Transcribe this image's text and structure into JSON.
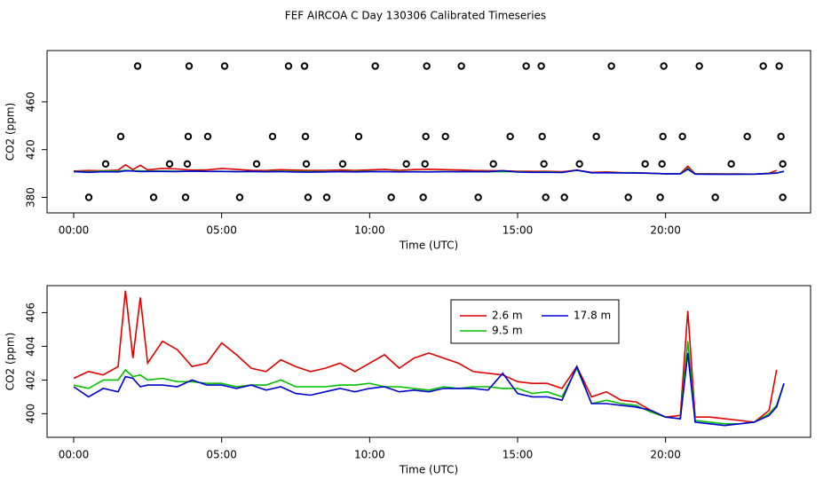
{
  "title": "FEF AIRCOA C  Day 130306  Calibrated Timeseries",
  "chart_data": [
    {
      "type": "line",
      "xlabel": "Time (UTC)",
      "ylabel": "CO2 (ppm)",
      "xlim": [
        -0.9,
        24.9
      ],
      "ylim": [
        367,
        503
      ],
      "xticks": [
        {
          "value": 0,
          "label": "00:00"
        },
        {
          "value": 5,
          "label": "05:00"
        },
        {
          "value": 10,
          "label": "10:00"
        },
        {
          "value": 15,
          "label": "15:00"
        },
        {
          "value": 20,
          "label": "20:00"
        }
      ],
      "yticks": [
        380,
        420,
        460
      ],
      "x": [
        0,
        0.5,
        1,
        1.5,
        1.75,
        2,
        2.25,
        2.5,
        3,
        3.5,
        4,
        4.5,
        5,
        5.5,
        6,
        6.5,
        7,
        7.5,
        8,
        8.5,
        9,
        9.5,
        10,
        10.5,
        11,
        11.5,
        12,
        12.5,
        13,
        13.5,
        14,
        14.5,
        15,
        15.5,
        16,
        16.5,
        17,
        17.5,
        18,
        18.5,
        19,
        19.5,
        20,
        20.5,
        20.75,
        21,
        21.5,
        22,
        22.5,
        23,
        23.5,
        23.75,
        24
      ],
      "lines": [
        {
          "color": "#e00000",
          "values": [
            402.1,
            402.5,
            402.3,
            402.8,
            407.3,
            403.3,
            406.9,
            403.0,
            404.3,
            403.8,
            402.8,
            403.0,
            404.2,
            403.5,
            402.7,
            402.5,
            403.2,
            402.8,
            402.5,
            402.7,
            403.0,
            402.5,
            403.0,
            403.5,
            402.7,
            403.3,
            403.6,
            403.3,
            403.0,
            402.5,
            402.4,
            402.3,
            401.9,
            401.8,
            401.8,
            401.5,
            402.8,
            401.0,
            401.3,
            400.8,
            400.7,
            400.2,
            399.8,
            399.9,
            406.1,
            399.8,
            399.8,
            399.7,
            399.6,
            399.5,
            400.2,
            402.6,
            null
          ]
        },
        {
          "color": "#00c000",
          "values": [
            401.7,
            401.5,
            402.0,
            402.0,
            402.6,
            402.2,
            402.3,
            402.0,
            402.1,
            401.9,
            401.9,
            401.8,
            401.8,
            401.6,
            401.7,
            401.7,
            402.0,
            401.6,
            401.6,
            401.6,
            401.7,
            401.7,
            401.8,
            401.6,
            401.6,
            401.5,
            401.4,
            401.6,
            401.5,
            401.6,
            401.6,
            401.5,
            401.5,
            401.2,
            401.3,
            401.0,
            402.7,
            400.6,
            400.8,
            400.6,
            400.5,
            400.1,
            399.8,
            399.7,
            404.3,
            399.6,
            399.5,
            399.4,
            399.4,
            399.5,
            400.0,
            400.5,
            401.8
          ]
        },
        {
          "color": "#0000d0",
          "values": [
            401.6,
            401.0,
            401.5,
            401.3,
            402.2,
            402.1,
            401.6,
            401.7,
            401.7,
            401.6,
            402.0,
            401.7,
            401.7,
            401.5,
            401.7,
            401.4,
            401.6,
            401.2,
            401.1,
            401.3,
            401.5,
            401.3,
            401.5,
            401.6,
            401.3,
            401.4,
            401.3,
            401.5,
            401.5,
            401.5,
            401.4,
            402.4,
            401.2,
            401.0,
            401.0,
            400.8,
            402.8,
            400.6,
            400.6,
            400.5,
            400.4,
            400.2,
            399.8,
            399.7,
            403.6,
            399.5,
            399.4,
            399.3,
            399.4,
            399.5,
            399.9,
            400.4,
            401.8
          ]
        }
      ],
      "points": {
        "x": [
          2.16,
          3.9,
          5.1,
          7.26,
          7.8,
          10.19,
          11.93,
          13.1,
          15.29,
          15.8,
          18.17,
          19.94,
          21.14,
          23.3,
          23.84,
          1.59,
          3.87,
          4.53,
          6.72,
          7.83,
          9.63,
          11.9,
          12.56,
          14.75,
          15.83,
          17.66,
          19.91,
          20.57,
          22.76,
          23.9,
          1.08,
          3.24,
          3.84,
          6.18,
          7.86,
          9.09,
          11.24,
          11.87,
          14.18,
          15.89,
          17.09,
          19.31,
          19.88,
          22.22,
          23.96,
          0.51,
          2.7,
          3.78,
          5.61,
          7.92,
          8.55,
          10.73,
          11.81,
          13.67,
          15.95,
          16.58,
          18.74,
          19.82,
          21.68,
          23.96
        ],
        "y": [
          490,
          490,
          490,
          490,
          490,
          490,
          490,
          490,
          490,
          490,
          490,
          490,
          490,
          490,
          490,
          431,
          431,
          431,
          431,
          431,
          431,
          431,
          431,
          431,
          431,
          431,
          431,
          431,
          431,
          431,
          408,
          408,
          408,
          408,
          408,
          408,
          408,
          408,
          408,
          408,
          408,
          408,
          408,
          408,
          408,
          380,
          380,
          380,
          380,
          380,
          380,
          380,
          380,
          380,
          380,
          380,
          380,
          380,
          380,
          380
        ]
      }
    },
    {
      "type": "line",
      "xlabel": "Time (UTC)",
      "ylabel": "CO2 (ppm)",
      "xlim": [
        -0.9,
        24.9
      ],
      "ylim": [
        398.6,
        407.6
      ],
      "xticks": [
        {
          "value": 0,
          "label": "00:00"
        },
        {
          "value": 5,
          "label": "05:00"
        },
        {
          "value": 10,
          "label": "10:00"
        },
        {
          "value": 15,
          "label": "15:00"
        },
        {
          "value": 20,
          "label": "20:00"
        }
      ],
      "yticks": [
        400,
        402,
        404,
        406
      ],
      "legend": "top",
      "x": [
        0,
        0.5,
        1,
        1.5,
        1.75,
        2,
        2.25,
        2.5,
        3,
        3.5,
        4,
        4.5,
        5,
        5.5,
        6,
        6.5,
        7,
        7.5,
        8,
        8.5,
        9,
        9.5,
        10,
        10.5,
        11,
        11.5,
        12,
        12.5,
        13,
        13.5,
        14,
        14.5,
        15,
        15.5,
        16,
        16.5,
        17,
        17.5,
        18,
        18.5,
        19,
        19.5,
        20,
        20.5,
        20.75,
        21,
        21.5,
        22,
        22.5,
        23,
        23.5,
        23.75,
        24
      ],
      "series": [
        {
          "name": "2.6 m",
          "color": "#e00000",
          "values": [
            402.1,
            402.5,
            402.3,
            402.8,
            407.3,
            403.3,
            406.9,
            403.0,
            404.3,
            403.8,
            402.8,
            403.0,
            404.2,
            403.5,
            402.7,
            402.5,
            403.2,
            402.8,
            402.5,
            402.7,
            403.0,
            402.5,
            403.0,
            403.5,
            402.7,
            403.3,
            403.6,
            403.3,
            403.0,
            402.5,
            402.4,
            402.3,
            401.9,
            401.8,
            401.8,
            401.5,
            402.8,
            401.0,
            401.3,
            400.8,
            400.7,
            400.2,
            399.8,
            399.9,
            406.1,
            399.8,
            399.8,
            399.7,
            399.6,
            399.5,
            400.2,
            402.6,
            null
          ]
        },
        {
          "name": "9.5 m",
          "color": "#00c000",
          "values": [
            401.7,
            401.5,
            402.0,
            402.0,
            402.6,
            402.2,
            402.3,
            402.0,
            402.1,
            401.9,
            401.9,
            401.8,
            401.8,
            401.6,
            401.7,
            401.7,
            402.0,
            401.6,
            401.6,
            401.6,
            401.7,
            401.7,
            401.8,
            401.6,
            401.6,
            401.5,
            401.4,
            401.6,
            401.5,
            401.6,
            401.6,
            401.5,
            401.5,
            401.2,
            401.3,
            401.0,
            402.7,
            400.6,
            400.8,
            400.6,
            400.5,
            400.1,
            399.8,
            399.7,
            404.3,
            399.6,
            399.5,
            399.4,
            399.4,
            399.5,
            400.0,
            400.5,
            401.8
          ]
        },
        {
          "name": "17.8 m",
          "color": "#0000d0",
          "values": [
            401.6,
            401.0,
            401.5,
            401.3,
            402.2,
            402.1,
            401.6,
            401.7,
            401.7,
            401.6,
            402.0,
            401.7,
            401.7,
            401.5,
            401.7,
            401.4,
            401.6,
            401.2,
            401.1,
            401.3,
            401.5,
            401.3,
            401.5,
            401.6,
            401.3,
            401.4,
            401.3,
            401.5,
            401.5,
            401.5,
            401.4,
            402.4,
            401.2,
            401.0,
            401.0,
            400.8,
            402.8,
            400.6,
            400.6,
            400.5,
            400.4,
            400.2,
            399.8,
            399.7,
            403.6,
            399.5,
            399.4,
            399.3,
            399.4,
            399.5,
            399.9,
            400.4,
            401.8
          ]
        }
      ]
    }
  ]
}
